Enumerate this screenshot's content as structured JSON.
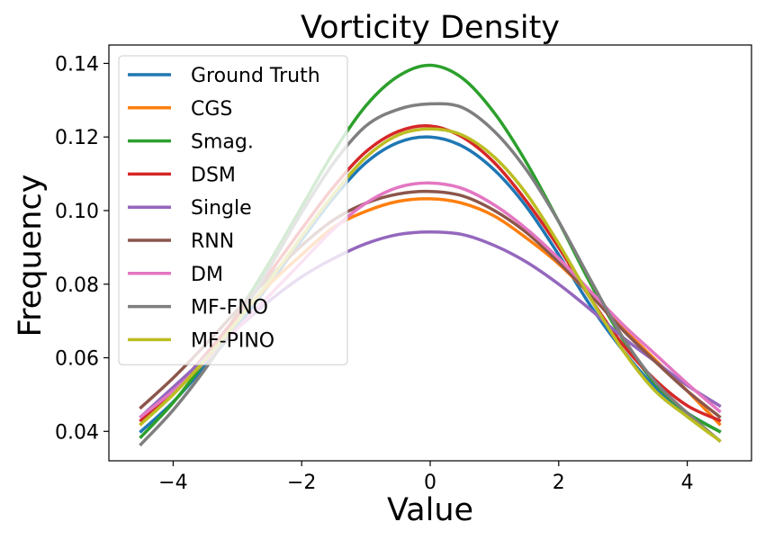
{
  "chart_data": {
    "type": "line",
    "title": "Vorticity Density",
    "xlabel": "Value",
    "ylabel": "Frequency",
    "xlim": [
      -5,
      5
    ],
    "ylim": [
      0.032,
      0.145
    ],
    "xticks": [
      -4,
      -2,
      0,
      2,
      4
    ],
    "xtick_labels": [
      "−4",
      "−2",
      "0",
      "2",
      "4"
    ],
    "yticks": [
      0.04,
      0.06,
      0.08,
      0.1,
      0.12,
      0.14
    ],
    "ytick_labels": [
      "0.04",
      "0.06",
      "0.08",
      "0.10",
      "0.12",
      "0.14"
    ],
    "legend_position": "top-left",
    "x": [
      -4.5,
      -4.0,
      -3.5,
      -3.0,
      -2.5,
      -2.0,
      -1.5,
      -1.0,
      -0.5,
      0.0,
      0.5,
      1.0,
      1.5,
      2.0,
      2.5,
      3.0,
      3.5,
      4.0,
      4.5
    ],
    "series": [
      {
        "name": "Ground Truth",
        "color": "#1f77b4",
        "values": [
          0.04,
          0.048,
          0.0578,
          0.0685,
          0.08,
          0.092,
          0.1035,
          0.113,
          0.1185,
          0.12,
          0.1175,
          0.111,
          0.101,
          0.088,
          0.074,
          0.062,
          0.052,
          0.045,
          0.04
        ]
      },
      {
        "name": "CGS",
        "color": "#ff7f0e",
        "values": [
          0.042,
          0.0508,
          0.0605,
          0.0705,
          0.08,
          0.088,
          0.0955,
          0.0998,
          0.1025,
          0.1032,
          0.102,
          0.0985,
          0.0925,
          0.0855,
          0.077,
          0.068,
          0.0595,
          0.051,
          0.042
        ]
      },
      {
        "name": "Smag.",
        "color": "#2ca02c",
        "values": [
          0.0385,
          0.0478,
          0.0592,
          0.072,
          0.086,
          0.101,
          0.116,
          0.1285,
          0.1365,
          0.1395,
          0.136,
          0.1265,
          0.113,
          0.097,
          0.08,
          0.065,
          0.053,
          0.045,
          0.04
        ]
      },
      {
        "name": "DSM",
        "color": "#d62728",
        "values": [
          0.043,
          0.051,
          0.0608,
          0.0715,
          0.083,
          0.095,
          0.1065,
          0.116,
          0.1215,
          0.123,
          0.12,
          0.113,
          0.1025,
          0.09,
          0.076,
          0.0635,
          0.054,
          0.047,
          0.043
        ]
      },
      {
        "name": "Single",
        "color": "#9467bd",
        "values": [
          0.044,
          0.052,
          0.06,
          0.068,
          0.0755,
          0.082,
          0.087,
          0.091,
          0.0935,
          0.0942,
          0.0935,
          0.0905,
          0.086,
          0.08,
          0.073,
          0.0655,
          0.059,
          0.0525,
          0.047
        ]
      },
      {
        "name": "RNN",
        "color": "#8c564b",
        "values": [
          0.0465,
          0.0545,
          0.0635,
          0.073,
          0.082,
          0.0905,
          0.0975,
          0.102,
          0.1045,
          0.1052,
          0.104,
          0.1,
          0.094,
          0.086,
          0.077,
          0.0675,
          0.059,
          0.051,
          0.044
        ]
      },
      {
        "name": "DM",
        "color": "#e377c2",
        "values": [
          0.044,
          0.051,
          0.059,
          0.068,
          0.077,
          0.086,
          0.095,
          0.102,
          0.1063,
          0.1075,
          0.106,
          0.1015,
          0.095,
          0.087,
          0.078,
          0.069,
          0.061,
          0.053,
          0.0455
        ]
      },
      {
        "name": "MF-FNO",
        "color": "#7f7f7f",
        "values": [
          0.0365,
          0.0458,
          0.057,
          0.07,
          0.0845,
          0.0995,
          0.113,
          0.123,
          0.1275,
          0.129,
          0.128,
          0.1215,
          0.111,
          0.097,
          0.081,
          0.0655,
          0.0535,
          0.045,
          0.0375
        ]
      },
      {
        "name": "MF-PINO",
        "color": "#bcbd22",
        "values": [
          0.042,
          0.05,
          0.0595,
          0.07,
          0.081,
          0.093,
          0.1045,
          0.1145,
          0.1205,
          0.1222,
          0.1205,
          0.1145,
          0.1045,
          0.091,
          0.076,
          0.062,
          0.051,
          0.044,
          0.0375
        ]
      }
    ]
  }
}
